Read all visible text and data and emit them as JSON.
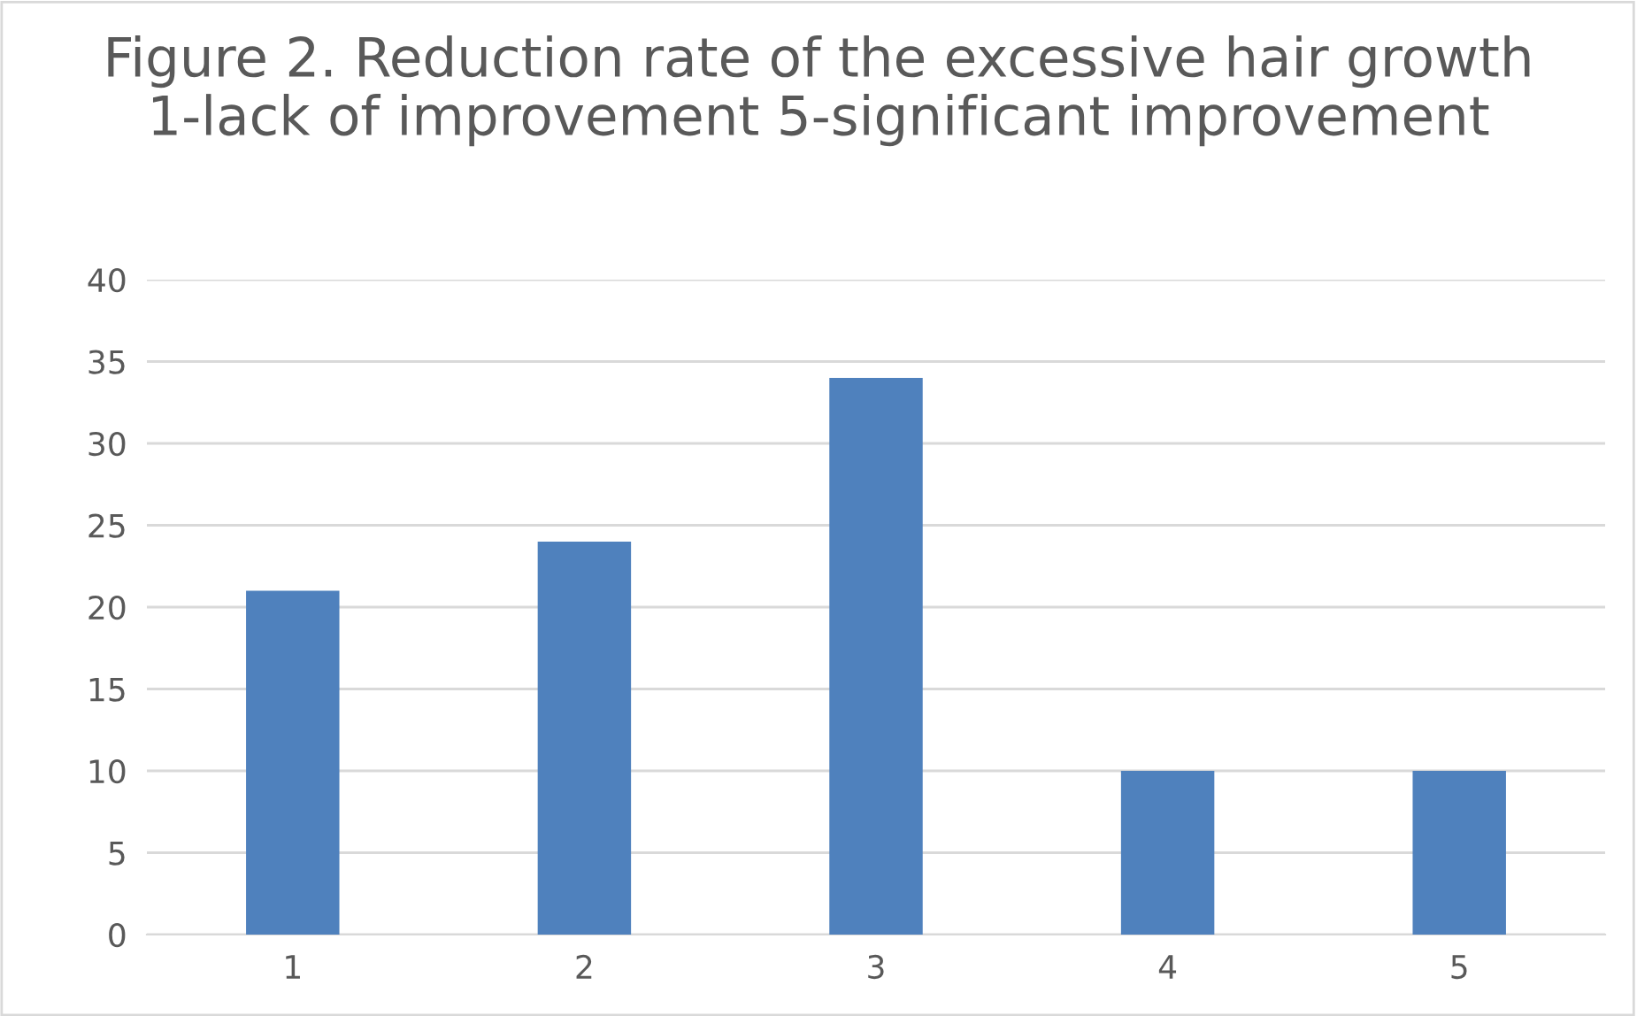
{
  "chart_data": {
    "type": "bar",
    "title": "Figure 2. Reduction rate of the excessive hair growth\n1-lack of improvement 5-significant improvement",
    "categories": [
      "1",
      "2",
      "3",
      "4",
      "5"
    ],
    "values": [
      21,
      24,
      34,
      10,
      10
    ],
    "color": "#4f81bd",
    "ylim": [
      0,
      40
    ],
    "yticks": [
      0,
      5,
      10,
      15,
      20,
      25,
      30,
      35,
      40
    ],
    "grid": "y"
  }
}
